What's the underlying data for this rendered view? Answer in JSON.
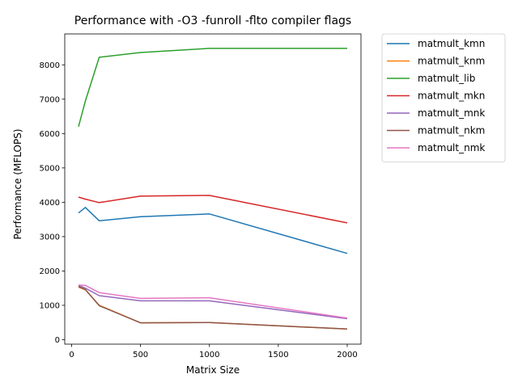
{
  "chart_data": {
    "type": "line",
    "title": "Performance with -O3 -funroll -flto compiler flags",
    "xlabel": "Matrix Size",
    "ylabel": "Performance (MFLOPS)",
    "xlim": [
      -50,
      2100
    ],
    "ylim": [
      -130,
      8900
    ],
    "xticks": [
      0,
      500,
      1000,
      1500,
      2000
    ],
    "yticks": [
      0,
      1000,
      2000,
      3000,
      4000,
      5000,
      6000,
      7000,
      8000
    ],
    "grid": false,
    "legend_position": "outside-right",
    "x": [
      50,
      100,
      200,
      500,
      1000,
      2000
    ],
    "series": [
      {
        "name": "matmult_kmn",
        "color": "#1f77b4",
        "values": [
          3690,
          3850,
          3460,
          3580,
          3660,
          2510
        ]
      },
      {
        "name": "matmult_knm",
        "color": "#ff7f0e",
        "values": [
          1530,
          1450,
          1000,
          490,
          500,
          310
        ]
      },
      {
        "name": "matmult_lib",
        "color": "#2ca02c",
        "values": [
          6200,
          6950,
          8220,
          8360,
          8480,
          8480
        ]
      },
      {
        "name": "matmult_mkn",
        "color": "#d62728",
        "values": [
          4150,
          4090,
          3990,
          4180,
          4200,
          3400
        ]
      },
      {
        "name": "matmult_mnk",
        "color": "#9467bd",
        "values": [
          1580,
          1500,
          1280,
          1130,
          1130,
          610
        ]
      },
      {
        "name": "matmult_nkm",
        "color": "#8c564b",
        "values": [
          1550,
          1460,
          990,
          490,
          500,
          310
        ]
      },
      {
        "name": "matmult_nmk",
        "color": "#e377c2",
        "values": [
          1590,
          1580,
          1370,
          1200,
          1220,
          630
        ]
      }
    ]
  }
}
